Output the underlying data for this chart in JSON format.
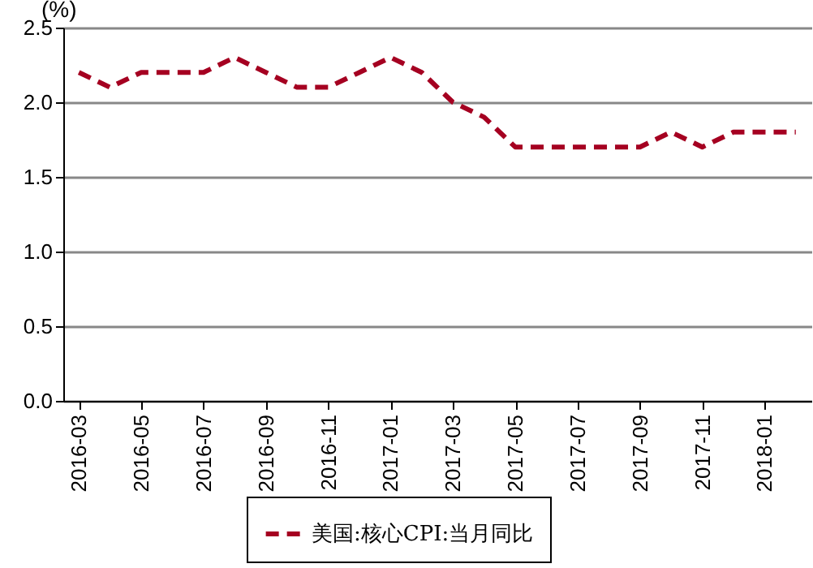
{
  "chart_data": {
    "type": "line",
    "ylabel": "(%)",
    "categories": [
      "2016-03",
      null,
      "2016-05",
      null,
      "2016-07",
      null,
      "2016-09",
      null,
      "2016-11",
      null,
      "2017-01",
      null,
      "2017-03",
      null,
      "2017-05",
      null,
      "2017-07",
      null,
      "2017-09",
      null,
      "2017-11",
      null,
      "2018-01",
      null
    ],
    "series": [
      {
        "name": "美国:核心CPI:当月同比",
        "color": "#a50021",
        "values": [
          2.2,
          2.1,
          2.2,
          2.2,
          2.2,
          2.3,
          2.2,
          2.1,
          2.1,
          2.2,
          2.3,
          2.2,
          2.0,
          1.9,
          1.7,
          1.7,
          1.7,
          1.7,
          1.7,
          1.8,
          1.7,
          1.8,
          1.8,
          1.8
        ]
      }
    ],
    "ylim": [
      0,
      2.5
    ],
    "yticks": [
      {
        "value": 0,
        "label": "0.0"
      },
      {
        "value": 0.5,
        "label": "0.5"
      },
      {
        "value": 1,
        "label": "1.0"
      },
      {
        "value": 1.5,
        "label": "1.5"
      },
      {
        "value": 2,
        "label": "2.0"
      },
      {
        "value": 2.5,
        "label": "2.5"
      }
    ],
    "grid": "y",
    "legend": "bottom",
    "line_style": "dashed"
  }
}
